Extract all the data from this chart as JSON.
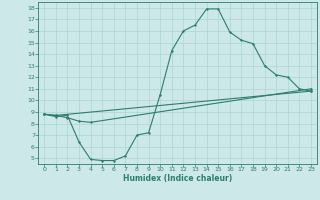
{
  "xlabel": "Humidex (Indice chaleur)",
  "xlim": [
    -0.5,
    23.5
  ],
  "ylim": [
    4.5,
    18.5
  ],
  "yticks": [
    5,
    6,
    7,
    8,
    9,
    10,
    11,
    12,
    13,
    14,
    15,
    16,
    17,
    18
  ],
  "xticks": [
    0,
    1,
    2,
    3,
    4,
    5,
    6,
    7,
    8,
    9,
    10,
    11,
    12,
    13,
    14,
    15,
    16,
    17,
    18,
    19,
    20,
    21,
    22,
    23
  ],
  "line_color": "#2e7d6e",
  "bg_color": "#cce8e8",
  "grid_color": "#aad4d4",
  "line1_x": [
    0,
    1,
    2,
    3,
    4,
    5,
    6,
    7,
    8,
    9,
    10,
    11,
    12,
    13,
    14,
    15,
    16,
    17,
    18,
    19,
    20,
    21,
    22,
    23
  ],
  "line1_y": [
    8.8,
    8.6,
    8.7,
    6.4,
    4.9,
    4.8,
    4.8,
    5.2,
    7.0,
    7.2,
    10.5,
    14.3,
    16.0,
    16.5,
    17.9,
    17.9,
    15.9,
    15.2,
    14.9,
    13.0,
    12.2,
    12.0,
    11.0,
    10.8
  ],
  "line2_x": [
    0,
    1,
    2,
    3,
    4,
    23
  ],
  "line2_y": [
    8.8,
    8.7,
    8.5,
    8.2,
    8.1,
    11.0
  ],
  "line3_x": [
    0,
    1,
    23
  ],
  "line3_y": [
    8.8,
    8.7,
    10.8
  ]
}
